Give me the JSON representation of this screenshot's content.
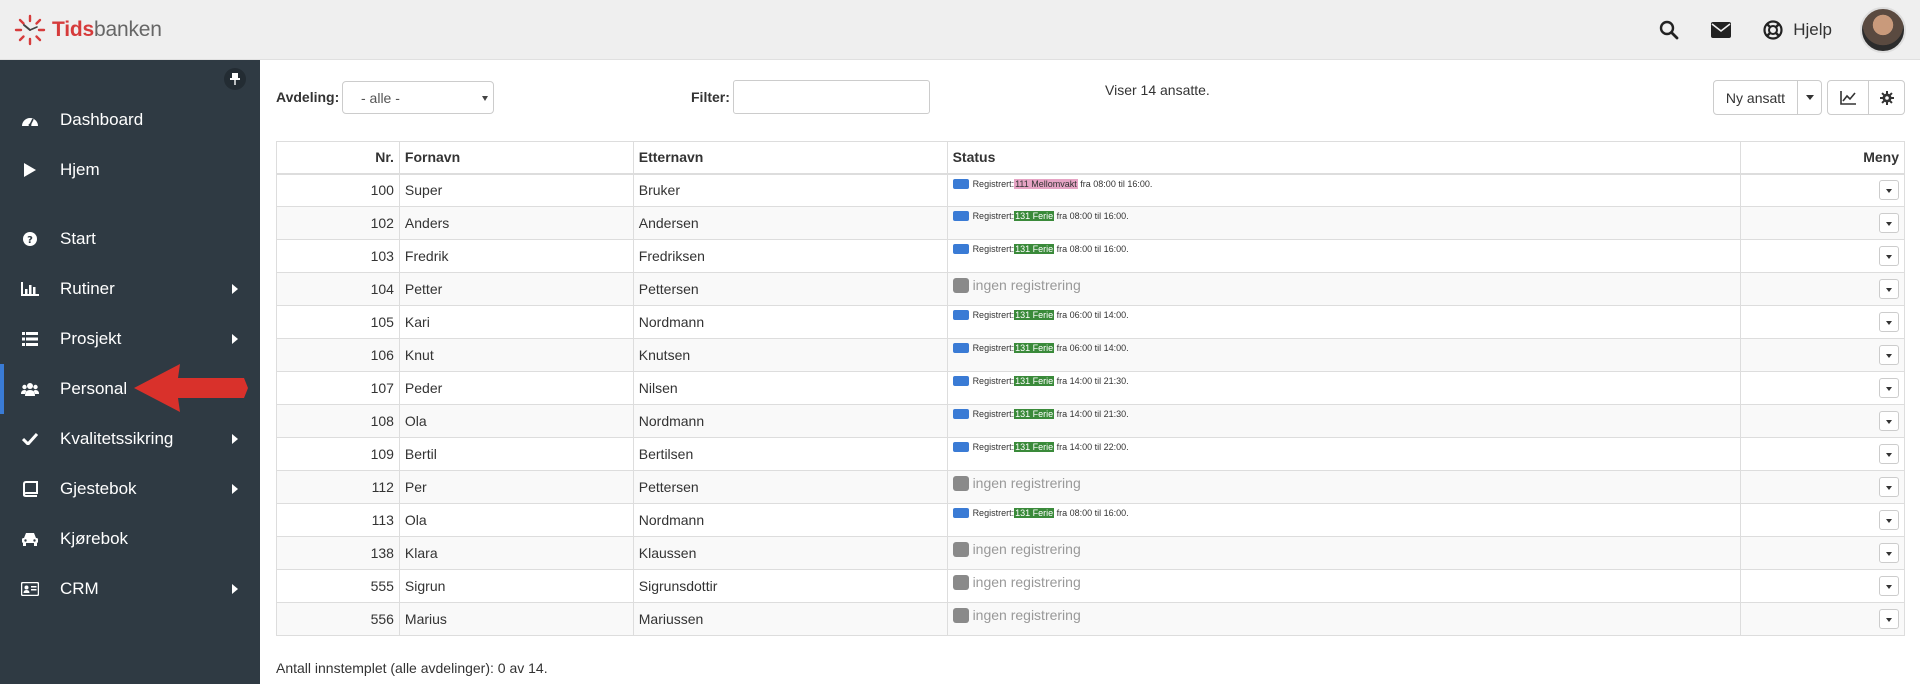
{
  "app": {
    "logo_bold": "Tids",
    "logo_rest": "banken"
  },
  "topbar": {
    "help_label": "Hjelp",
    "icons": [
      "search-icon",
      "envelope-icon",
      "lifebuoy-icon"
    ]
  },
  "sidebar": {
    "items": [
      {
        "label": "Dashboard",
        "icon": "dashboard-icon",
        "submenu": false
      },
      {
        "label": "Hjem",
        "icon": "play-icon",
        "submenu": false
      },
      {
        "label": "Start",
        "icon": "question-icon",
        "submenu": false
      },
      {
        "label": "Rutiner",
        "icon": "bar-chart-icon",
        "submenu": true
      },
      {
        "label": "Prosjekt",
        "icon": "list-icon",
        "submenu": true
      },
      {
        "label": "Personal",
        "icon": "users-icon",
        "submenu": false,
        "active": true
      },
      {
        "label": "Kvalitetssikring",
        "icon": "check-icon",
        "submenu": true
      },
      {
        "label": "Gjestebok",
        "icon": "book-icon",
        "submenu": true
      },
      {
        "label": "Kjørebok",
        "icon": "car-icon",
        "submenu": false
      },
      {
        "label": "CRM",
        "icon": "id-card-icon",
        "submenu": true
      }
    ]
  },
  "toolbar": {
    "department_label": "Avdeling:",
    "department_value": "- alle -",
    "filter_label": "Filter:",
    "filter_value": "",
    "count_text": "Viser 14 ansatte.",
    "new_employee_label": "Ny ansatt"
  },
  "table": {
    "headers": {
      "nr": "Nr.",
      "first": "Fornavn",
      "last": "Etternavn",
      "status": "Status",
      "menu": "Meny"
    },
    "rows": [
      {
        "nr": "100",
        "first": "Super",
        "last": "Bruker",
        "reg": true,
        "prefix": "Registrert:",
        "tag": "111 Mellomvakt",
        "tag_type": "pink",
        "time": "fra 08:00 til 16:00."
      },
      {
        "nr": "102",
        "first": "Anders",
        "last": "Andersen",
        "reg": true,
        "prefix": "Registrert:",
        "tag": "131 Ferie",
        "tag_type": "green",
        "time": "fra 08:00 til 16:00."
      },
      {
        "nr": "103",
        "first": "Fredrik",
        "last": "Fredriksen",
        "reg": true,
        "prefix": "Registrert:",
        "tag": "131 Ferie",
        "tag_type": "green",
        "time": "fra 08:00 til 16:00."
      },
      {
        "nr": "104",
        "first": "Petter",
        "last": "Pettersen",
        "reg": false,
        "none": "ingen registrering"
      },
      {
        "nr": "105",
        "first": "Kari",
        "last": "Nordmann",
        "reg": true,
        "prefix": "Registrert:",
        "tag": "131 Ferie",
        "tag_type": "green",
        "time": "fra 06:00 til 14:00."
      },
      {
        "nr": "106",
        "first": "Knut",
        "last": "Knutsen",
        "reg": true,
        "prefix": "Registrert:",
        "tag": "131 Ferie",
        "tag_type": "green",
        "time": "fra 06:00 til 14:00."
      },
      {
        "nr": "107",
        "first": "Peder",
        "last": "Nilsen",
        "reg": true,
        "prefix": "Registrert:",
        "tag": "131 Ferie",
        "tag_type": "green",
        "time": "fra 14:00 til 21:30."
      },
      {
        "nr": "108",
        "first": "Ola",
        "last": "Nordmann",
        "reg": true,
        "prefix": "Registrert:",
        "tag": "131 Ferie",
        "tag_type": "green",
        "time": "fra 14:00 til 21:30."
      },
      {
        "nr": "109",
        "first": "Bertil",
        "last": "Bertilsen",
        "reg": true,
        "prefix": "Registrert:",
        "tag": "131 Ferie",
        "tag_type": "green",
        "time": "fra 14:00 til 22:00."
      },
      {
        "nr": "112",
        "first": "Per",
        "last": "Pettersen",
        "reg": false,
        "none": "ingen registrering"
      },
      {
        "nr": "113",
        "first": "Ola",
        "last": "Nordmann",
        "reg": true,
        "prefix": "Registrert:",
        "tag": "131 Ferie",
        "tag_type": "green",
        "time": "fra 08:00 til 16:00."
      },
      {
        "nr": "138",
        "first": "Klara",
        "last": "Klaussen",
        "reg": false,
        "none": "ingen registrering"
      },
      {
        "nr": "555",
        "first": "Sigrun",
        "last": "Sigrunsdottir",
        "reg": false,
        "none": "ingen registrering"
      },
      {
        "nr": "556",
        "first": "Marius",
        "last": "Mariussen",
        "reg": false,
        "none": "ingen registrering"
      }
    ]
  },
  "footer": {
    "text": "Antall innstemplet (alle avdelinger): 0 av 14."
  },
  "colors": {
    "sidebar": "#2f3a43",
    "accent": "#3a7bd5",
    "logo_red": "#d63b3b",
    "tag_green": "#3a8a3a",
    "tag_pink": "#e6a4c4",
    "arrow_red": "#d9312b"
  }
}
